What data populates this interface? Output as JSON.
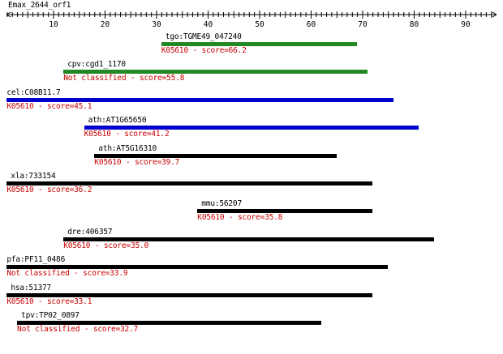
{
  "title": "Emax_2644_orf1",
  "axis": {
    "min": 0,
    "max": 95,
    "tick_labels": [
      "10",
      "20",
      "30",
      "40",
      "50",
      "60",
      "70",
      "80",
      "90"
    ]
  },
  "colors": {
    "score_text": "#cc0000",
    "green": "#228822",
    "blue": "#0000cc",
    "black": "#000000"
  },
  "hits": [
    {
      "name": "tgo:TGME49_047240",
      "score_text": "K05610 - score=66.2",
      "start": 31,
      "end": 69,
      "color": "#228822"
    },
    {
      "name": "cpv:cgd1_1170",
      "score_text": "Not classified - score=55.8",
      "start": 12,
      "end": 71,
      "color": "#228822"
    },
    {
      "name": "cel:C08B11.7",
      "score_text": "K05610 - score=45.1",
      "start": 1,
      "end": 76,
      "color": "#0000cc"
    },
    {
      "name": "ath:AT1G65650",
      "score_text": "K05610 - score=41.2",
      "start": 16,
      "end": 81,
      "color": "#0000cc"
    },
    {
      "name": "ath:AT5G16310",
      "score_text": "K05610 - score=39.7",
      "start": 18,
      "end": 65,
      "color": "#000000"
    },
    {
      "name": "xla:733154",
      "score_text": "K05610 - score=36.2",
      "start": 1,
      "end": 72,
      "color": "#000000"
    },
    {
      "name": "mmu:56207",
      "score_text": "K05610 - score=35.8",
      "start": 38,
      "end": 72,
      "color": "#000000"
    },
    {
      "name": "dre:406357",
      "score_text": "K05610 - score=35.0",
      "start": 12,
      "end": 84,
      "color": "#000000"
    },
    {
      "name": "pfa:PF11_0486",
      "score_text": "Not classified - score=33.9",
      "start": 1,
      "end": 75,
      "color": "#000000"
    },
    {
      "name": "hsa:51377",
      "score_text": "K05610 - score=33.1",
      "start": 1,
      "end": 72,
      "color": "#000000"
    },
    {
      "name": "tpv:TP02_0897",
      "score_text": "Not classified - score=32.7",
      "start": 3,
      "end": 62,
      "color": "#000000"
    }
  ]
}
